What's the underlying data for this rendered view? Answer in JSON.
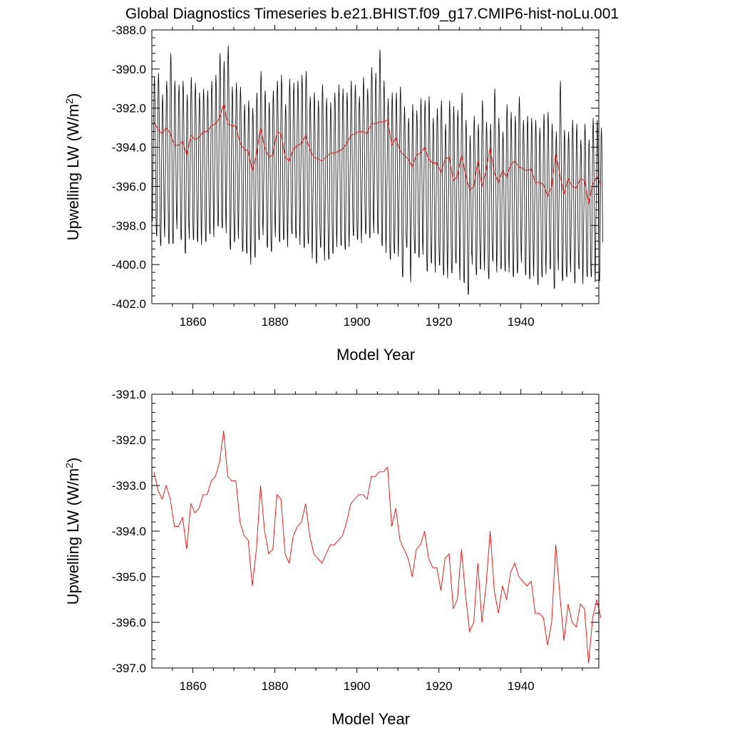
{
  "title": "Global Diagnostics Timeseries b.e21.BHIST.f09_g17.CMIP6-hist-noLu.001",
  "chart_data": [
    {
      "type": "line",
      "xlabel": "Model Year",
      "ylabel": "Upwelling LW (W/m",
      "ylabel_sup": "2",
      "ylabel_end": ")",
      "xlim": [
        1850,
        1959
      ],
      "ylim": [
        -402.0,
        -388.0
      ],
      "xticks": [
        "1860",
        "1880",
        "1900",
        "1920",
        "1940"
      ],
      "yticks": [
        "-402.0",
        "-400.0",
        "-398.0",
        "-396.0",
        "-394.0",
        "-392.0",
        "-390.0",
        "-388.0"
      ],
      "series": [
        {
          "kind": "monthly",
          "color": "#000000",
          "annual_max": [
            -390.4,
            -390.2,
            -391.3,
            -390.6,
            -389.2,
            -390.6,
            -390.8,
            -390.6,
            -391.3,
            -390.4,
            -390.7,
            -391.2,
            -391.0,
            -391.1,
            -390.6,
            -390.3,
            -389.2,
            -389.6,
            -388.8,
            -390.9,
            -390.7,
            -390.9,
            -391.8,
            -391.6,
            -392.0,
            -391.2,
            -390.1,
            -391.1,
            -391.7,
            -391.1,
            -390.6,
            -390.3,
            -391.8,
            -390.5,
            -390.7,
            -390.6,
            -390.3,
            -390.1,
            -391.4,
            -391.2,
            -391.6,
            -390.8,
            -391.5,
            -391.7,
            -391.2,
            -390.8,
            -391.0,
            -391.2,
            -390.6,
            -390.8,
            -391.4,
            -390.4,
            -391.0,
            -389.9,
            -390.2,
            -389.0,
            -390.6,
            -391.5,
            -391.2,
            -391.2,
            -390.9,
            -391.9,
            -392.5,
            -391.8,
            -392.1,
            -391.5,
            -391.6,
            -391.4,
            -392.5,
            -392.0,
            -391.6,
            -392.8,
            -391.6,
            -391.9,
            -392.1,
            -391.2,
            -392.6,
            -393.4,
            -392.4,
            -392.8,
            -391.6,
            -392.7,
            -392.8,
            -391.0,
            -392.5,
            -393.2,
            -391.8,
            -392.2,
            -392.4,
            -391.4,
            -392.6,
            -392.4,
            -392.5,
            -392.6,
            -393.0,
            -392.3,
            -392.2,
            -392.8,
            -393.2,
            -390.6,
            -393.1,
            -393.2,
            -392.6,
            -392.8,
            -393.6,
            -392.8,
            -393.6,
            -392.5,
            -392.6,
            -393.0
          ],
          "annual_min": [
            -397.8,
            -398.5,
            -399.0,
            -398.6,
            -398.9,
            -398.9,
            -398.2,
            -398.7,
            -399.4,
            -398.7,
            -398.7,
            -398.8,
            -399.0,
            -398.8,
            -398.4,
            -398.6,
            -398.0,
            -398.1,
            -398.4,
            -399.2,
            -398.8,
            -398.7,
            -399.3,
            -399.4,
            -400.0,
            -399.6,
            -398.7,
            -398.5,
            -399.1,
            -399.3,
            -398.6,
            -398.8,
            -398.7,
            -399.1,
            -398.4,
            -398.6,
            -399.0,
            -399.1,
            -398.9,
            -399.7,
            -399.9,
            -399.1,
            -399.8,
            -399.7,
            -399.4,
            -399.1,
            -399.0,
            -399.2,
            -399.1,
            -398.5,
            -398.7,
            -398.9,
            -398.4,
            -398.6,
            -398.4,
            -398.4,
            -399.0,
            -399.4,
            -399.7,
            -399.4,
            -399.6,
            -400.6,
            -399.1,
            -400.9,
            -399.4,
            -399.6,
            -399.5,
            -400.3,
            -399.9,
            -400.4,
            -400.0,
            -400.5,
            -400.7,
            -400.4,
            -399.9,
            -400.8,
            -400.9,
            -401.5,
            -400.0,
            -400.5,
            -400.2,
            -400.3,
            -400.7,
            -399.8,
            -400.4,
            -400.2,
            -400.3,
            -400.4,
            -400.6,
            -400.4,
            -399.9,
            -400.5,
            -400.7,
            -400.6,
            -401.0,
            -400.6,
            -400.5,
            -400.2,
            -401.2,
            -400.3,
            -400.8,
            -400.6,
            -400.4,
            -400.9,
            -400.2,
            -401.0,
            -400.6,
            -400.6,
            -400.9,
            -400.8
          ]
        },
        {
          "kind": "annual",
          "color": "#ff0000",
          "values": [
            -392.7,
            -393.1,
            -393.3,
            -393.0,
            -393.3,
            -393.9,
            -393.9,
            -393.7,
            -394.4,
            -393.4,
            -393.6,
            -393.5,
            -393.2,
            -393.2,
            -392.9,
            -392.8,
            -392.5,
            -391.8,
            -392.8,
            -392.9,
            -392.9,
            -393.8,
            -394.1,
            -394.2,
            -395.2,
            -394.4,
            -393.0,
            -394.0,
            -394.5,
            -394.4,
            -393.2,
            -393.3,
            -394.5,
            -394.7,
            -394.1,
            -393.9,
            -393.8,
            -393.4,
            -394.1,
            -394.5,
            -394.6,
            -394.7,
            -394.5,
            -394.3,
            -394.3,
            -394.2,
            -394.1,
            -393.8,
            -393.4,
            -393.3,
            -393.2,
            -393.2,
            -393.3,
            -392.8,
            -392.8,
            -392.7,
            -392.7,
            -392.6,
            -393.9,
            -393.5,
            -394.2,
            -394.4,
            -394.6,
            -395.0,
            -394.4,
            -394.3,
            -394.0,
            -394.6,
            -394.8,
            -394.8,
            -395.3,
            -394.6,
            -394.5,
            -395.7,
            -395.5,
            -394.4,
            -395.4,
            -396.2,
            -396.0,
            -394.7,
            -396.0,
            -395.2,
            -394.0,
            -395.3,
            -395.8,
            -395.2,
            -395.5,
            -394.9,
            -394.7,
            -395.0,
            -395.1,
            -395.2,
            -395.1,
            -395.8,
            -395.8,
            -395.9,
            -396.5,
            -396.0,
            -394.3,
            -395.4,
            -396.4,
            -395.6,
            -396.0,
            -396.1,
            -395.6,
            -395.7,
            -396.9,
            -395.9,
            -395.5,
            -395.9
          ]
        }
      ]
    },
    {
      "type": "line",
      "xlabel": "Model Year",
      "ylabel": "Upwelling LW (W/m",
      "ylabel_sup": "2",
      "ylabel_end": ")",
      "xlim": [
        1850,
        1959
      ],
      "ylim": [
        -397.0,
        -391.0
      ],
      "xticks": [
        "1860",
        "1880",
        "1900",
        "1920",
        "1940"
      ],
      "yticks": [
        "-397.0",
        "-396.0",
        "-395.0",
        "-394.0",
        "-393.0",
        "-392.0",
        "-391.0"
      ],
      "series": [
        {
          "kind": "annual",
          "color": "#ff0000",
          "values": [
            -392.7,
            -393.1,
            -393.3,
            -393.0,
            -393.3,
            -393.9,
            -393.9,
            -393.7,
            -394.4,
            -393.4,
            -393.6,
            -393.5,
            -393.2,
            -393.2,
            -392.9,
            -392.8,
            -392.5,
            -391.8,
            -392.8,
            -392.9,
            -392.9,
            -393.8,
            -394.1,
            -394.2,
            -395.2,
            -394.4,
            -393.0,
            -394.0,
            -394.5,
            -394.4,
            -393.2,
            -393.3,
            -394.5,
            -394.7,
            -394.1,
            -393.9,
            -393.8,
            -393.4,
            -394.1,
            -394.5,
            -394.6,
            -394.7,
            -394.5,
            -394.3,
            -394.3,
            -394.2,
            -394.1,
            -393.8,
            -393.4,
            -393.3,
            -393.2,
            -393.2,
            -393.3,
            -392.8,
            -392.8,
            -392.7,
            -392.7,
            -392.6,
            -393.9,
            -393.5,
            -394.2,
            -394.4,
            -394.6,
            -395.0,
            -394.4,
            -394.3,
            -394.0,
            -394.6,
            -394.8,
            -394.8,
            -395.3,
            -394.6,
            -394.5,
            -395.7,
            -395.5,
            -394.4,
            -395.4,
            -396.2,
            -396.0,
            -394.7,
            -396.0,
            -395.2,
            -394.0,
            -395.3,
            -395.8,
            -395.2,
            -395.5,
            -394.9,
            -394.7,
            -395.0,
            -395.1,
            -395.2,
            -395.1,
            -395.8,
            -395.8,
            -395.9,
            -396.5,
            -396.0,
            -394.3,
            -395.4,
            -396.4,
            -395.6,
            -396.0,
            -396.1,
            -395.6,
            -395.7,
            -396.9,
            -395.9,
            -395.5,
            -395.9
          ]
        }
      ]
    }
  ]
}
